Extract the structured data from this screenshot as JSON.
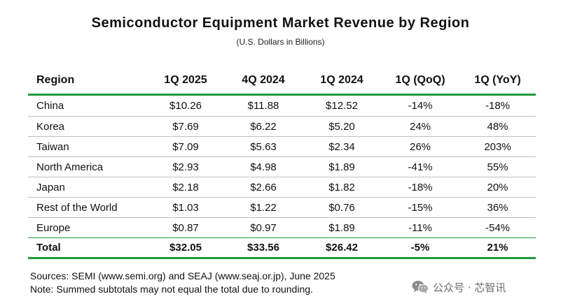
{
  "header": {
    "title": "Semiconductor Equipment Market Revenue by Region",
    "subtitle": "(U.S. Dollars in Billions)"
  },
  "table": {
    "columns": [
      "Region",
      "1Q 2025",
      "4Q 2024",
      "1Q 2024",
      "1Q (QoQ)",
      "1Q (YoY)"
    ],
    "rows": [
      [
        "China",
        "$10.26",
        "$11.88",
        "$12.52",
        "-14%",
        "-18%"
      ],
      [
        "Korea",
        "$7.69",
        "$6.22",
        "$5.20",
        "24%",
        "48%"
      ],
      [
        "Taiwan",
        "$7.09",
        "$5.63",
        "$2.34",
        "26%",
        "203%"
      ],
      [
        "North America",
        "$2.93",
        "$4.98",
        "$1.89",
        "-41%",
        "55%"
      ],
      [
        "Japan",
        "$2.18",
        "$2.66",
        "$1.82",
        "-18%",
        "20%"
      ],
      [
        "Rest of the World",
        "$1.03",
        "$1.22",
        "$0.76",
        "-15%",
        "36%"
      ],
      [
        "Europe",
        "$0.87",
        "$0.97",
        "$1.89",
        "-11%",
        "-54%"
      ]
    ],
    "total": [
      "Total",
      "$32.05",
      "$33.56",
      "$26.42",
      "-5%",
      "21%"
    ]
  },
  "notes": {
    "sources": "Sources: SEMI (www.semi.org) and SEAJ (www.seaj.or.jp), June 2025",
    "note": "Note: Summed subtotals may not equal the total due to rounding."
  },
  "watermark": {
    "icon": "wechat-icon",
    "text": "公众号 · 芯智讯"
  },
  "colors": {
    "rule_accent": "#1f9a3a",
    "row_divider": "#bfbfbf",
    "text": "#111111",
    "watermark": "#6b6b6b"
  }
}
